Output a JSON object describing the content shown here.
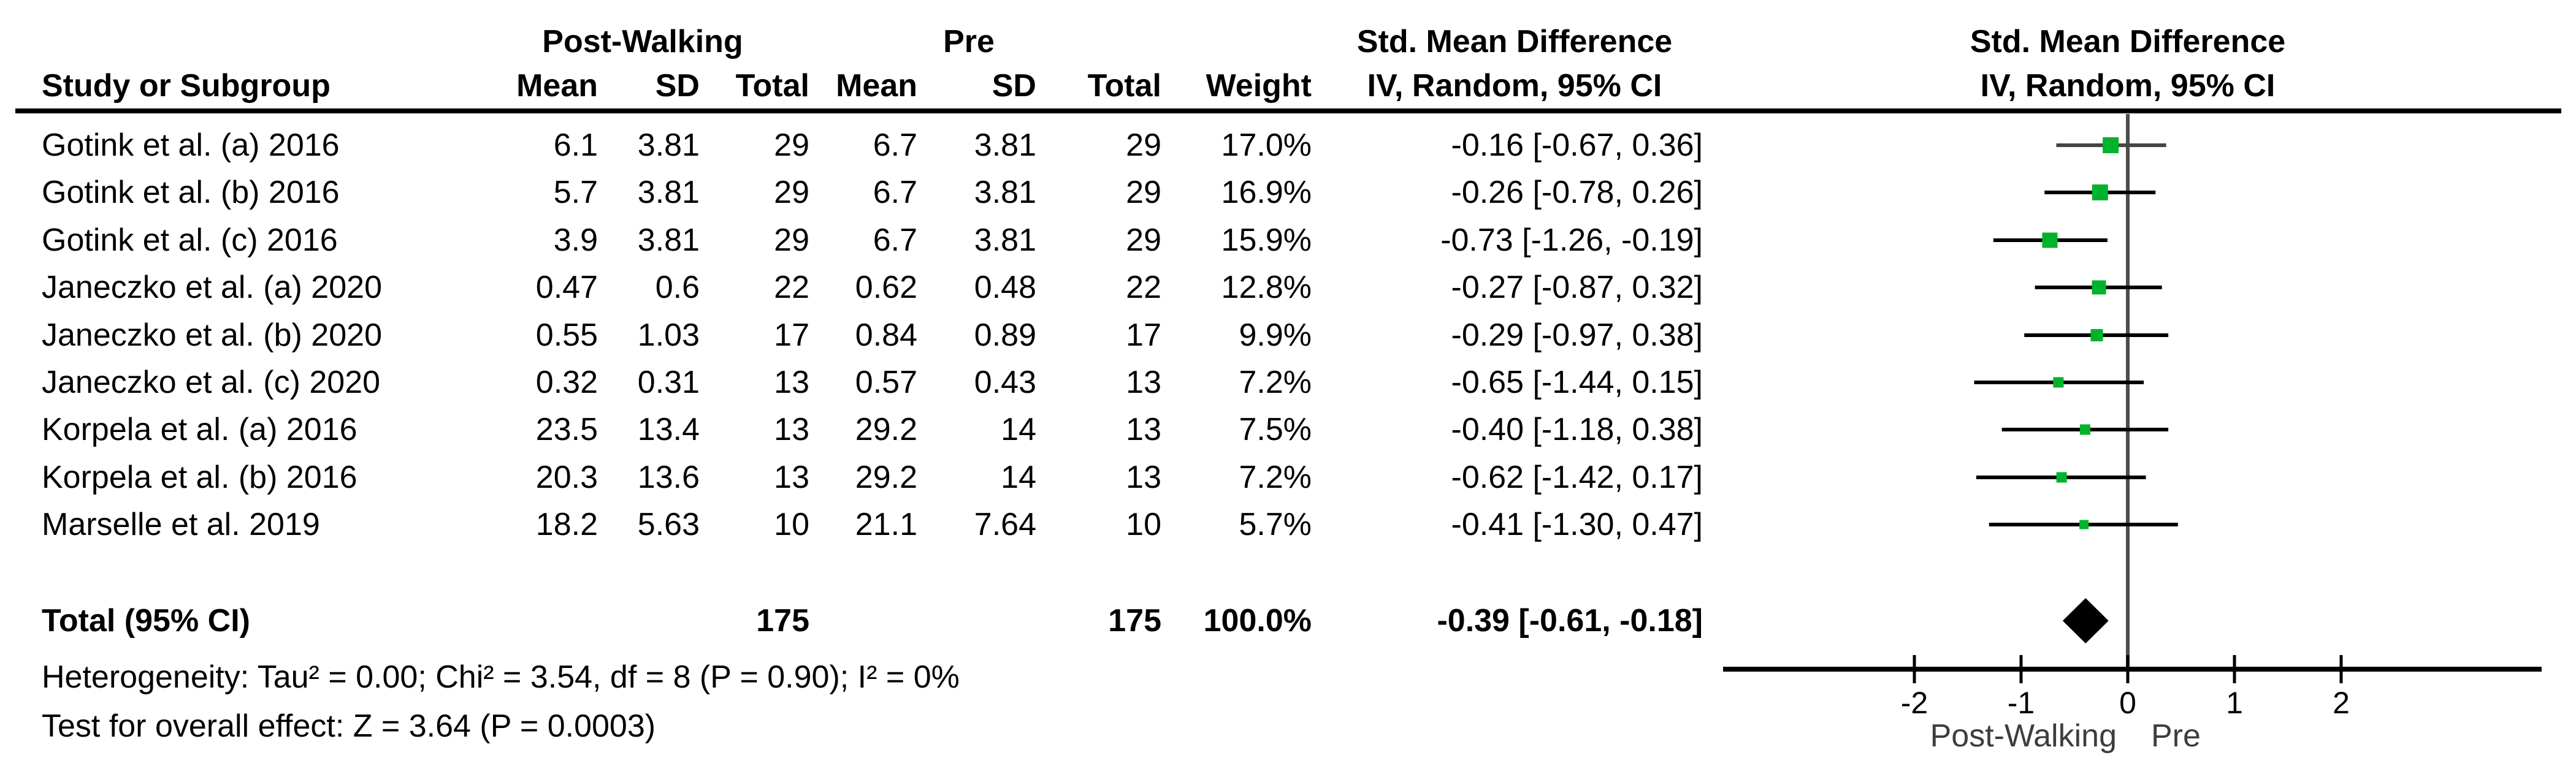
{
  "header": {
    "group_post": "Post-Walking",
    "group_pre": "Pre",
    "smd_title": "Std. Mean Difference",
    "smd_subtitle": "IV, Random, 95% CI",
    "plot_title": "Std. Mean Difference",
    "plot_subtitle": "IV, Random, 95% CI",
    "study_col": "Study or Subgroup",
    "mean_col": "Mean",
    "sd_col": "SD",
    "total_col": "Total",
    "weight_col": "Weight"
  },
  "chart_data": {
    "type": "forest",
    "effect_measure": "Std. Mean Difference, IV, Random, 95% CI",
    "studies": [
      {
        "name": "Gotink et al. (a) 2016",
        "post_mean": "6.1",
        "post_sd": "3.81",
        "post_total": "29",
        "pre_mean": "6.7",
        "pre_sd": "3.81",
        "pre_total": "29",
        "weight": "17.0%",
        "weight_value": 17.0,
        "ci_text": "-0.16 [-0.67, 0.36]",
        "est": -0.16,
        "lo": -0.67,
        "hi": 0.36,
        "line_color": "#454545"
      },
      {
        "name": "Gotink et al. (b) 2016",
        "post_mean": "5.7",
        "post_sd": "3.81",
        "post_total": "29",
        "pre_mean": "6.7",
        "pre_sd": "3.81",
        "pre_total": "29",
        "weight": "16.9%",
        "weight_value": 16.9,
        "ci_text": "-0.26 [-0.78, 0.26]",
        "est": -0.26,
        "lo": -0.78,
        "hi": 0.26
      },
      {
        "name": "Gotink et al. (c) 2016",
        "post_mean": "3.9",
        "post_sd": "3.81",
        "post_total": "29",
        "pre_mean": "6.7",
        "pre_sd": "3.81",
        "pre_total": "29",
        "weight": "15.9%",
        "weight_value": 15.9,
        "ci_text": "-0.73 [-1.26, -0.19]",
        "est": -0.73,
        "lo": -1.26,
        "hi": -0.19
      },
      {
        "name": "Janeczko et al. (a) 2020",
        "post_mean": "0.47",
        "post_sd": "0.6",
        "post_total": "22",
        "pre_mean": "0.62",
        "pre_sd": "0.48",
        "pre_total": "22",
        "weight": "12.8%",
        "weight_value": 12.8,
        "ci_text": "-0.27 [-0.87, 0.32]",
        "est": -0.27,
        "lo": -0.87,
        "hi": 0.32
      },
      {
        "name": "Janeczko et al. (b) 2020",
        "post_mean": "0.55",
        "post_sd": "1.03",
        "post_total": "17",
        "pre_mean": "0.84",
        "pre_sd": "0.89",
        "pre_total": "17",
        "weight": "9.9%",
        "weight_value": 9.9,
        "ci_text": "-0.29 [-0.97, 0.38]",
        "est": -0.29,
        "lo": -0.97,
        "hi": 0.38
      },
      {
        "name": "Janeczko et al. (c) 2020",
        "post_mean": "0.32",
        "post_sd": "0.31",
        "post_total": "13",
        "pre_mean": "0.57",
        "pre_sd": "0.43",
        "pre_total": "13",
        "weight": "7.2%",
        "weight_value": 7.2,
        "ci_text": "-0.65 [-1.44, 0.15]",
        "est": -0.65,
        "lo": -1.44,
        "hi": 0.15
      },
      {
        "name": "Korpela et al. (a) 2016",
        "post_mean": "23.5",
        "post_sd": "13.4",
        "post_total": "13",
        "pre_mean": "29.2",
        "pre_sd": "14",
        "pre_total": "13",
        "weight": "7.5%",
        "weight_value": 7.5,
        "ci_text": "-0.40 [-1.18, 0.38]",
        "est": -0.4,
        "lo": -1.18,
        "hi": 0.38
      },
      {
        "name": "Korpela et al. (b) 2016",
        "post_mean": "20.3",
        "post_sd": "13.6",
        "post_total": "13",
        "pre_mean": "29.2",
        "pre_sd": "14",
        "pre_total": "13",
        "weight": "7.2%",
        "weight_value": 7.2,
        "ci_text": "-0.62 [-1.42, 0.17]",
        "est": -0.62,
        "lo": -1.42,
        "hi": 0.17
      },
      {
        "name": "Marselle et al. 2019",
        "post_mean": "18.2",
        "post_sd": "5.63",
        "post_total": "10",
        "pre_mean": "21.1",
        "pre_sd": "7.64",
        "pre_total": "10",
        "weight": "5.7%",
        "weight_value": 5.7,
        "ci_text": "-0.41 [-1.30, 0.47]",
        "est": -0.41,
        "lo": -1.3,
        "hi": 0.47
      }
    ],
    "total": {
      "label": "Total (95% CI)",
      "post_total": "175",
      "pre_total": "175",
      "weight": "100.0%",
      "ci_text": "-0.39 [-0.61, -0.18]",
      "est": -0.39,
      "lo": -0.61,
      "hi": -0.18
    },
    "footer": {
      "heterogeneity": "Heterogeneity: Tau² = 0.00; Chi² = 3.54, df = 8 (P = 0.90); I² = 0%",
      "overall_effect": "Test for overall effect: Z = 3.64 (P = 0.0003)"
    },
    "x_axis": {
      "ticks": [
        -2,
        -1,
        0,
        1,
        2
      ],
      "tick_labels": [
        "-2",
        "-1",
        "0",
        "1",
        "2"
      ],
      "range_drawn": [
        -3.8,
        3.9
      ],
      "favours_left": "Post-Walking",
      "favours_right": "Pre"
    },
    "colors": {
      "marker_green": "#00b32a",
      "ci_line": "#000000",
      "zero_line": "#4d4d4d",
      "axis": "#000000",
      "text": "#000000",
      "axis_sublabel": "#3d3d3d",
      "summary_diamond": "#000000"
    }
  }
}
